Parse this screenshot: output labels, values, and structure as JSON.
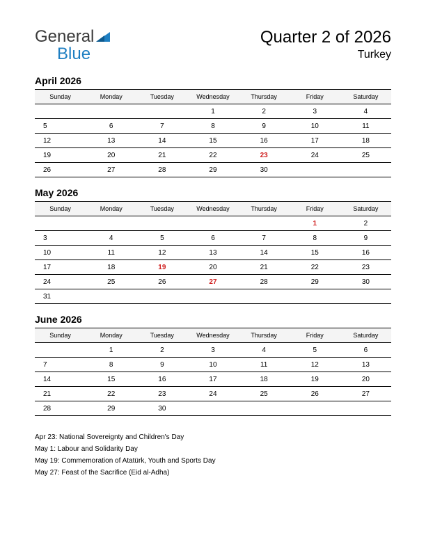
{
  "logo": {
    "general": "General",
    "blue": "Blue",
    "tri_color": "#1e7fc2"
  },
  "title": "Quarter 2 of 2026",
  "country": "Turkey",
  "weekdays": [
    "Sunday",
    "Monday",
    "Tuesday",
    "Wednesday",
    "Thursday",
    "Friday",
    "Saturday"
  ],
  "colors": {
    "holiday": "#d02020",
    "text": "#000000",
    "header_bg": "#f4f4f4",
    "border": "#000000",
    "background": "#ffffff"
  },
  "months": [
    {
      "name": "April 2026",
      "weeks": [
        [
          "",
          "",
          "",
          "1",
          "2",
          "3",
          "4"
        ],
        [
          "5",
          "6",
          "7",
          "8",
          "9",
          "10",
          "11"
        ],
        [
          "12",
          "13",
          "14",
          "15",
          "16",
          "17",
          "18"
        ],
        [
          "19",
          "20",
          "21",
          "22",
          "23",
          "24",
          "25"
        ],
        [
          "26",
          "27",
          "28",
          "29",
          "30",
          "",
          ""
        ]
      ],
      "holidays": [
        "23"
      ]
    },
    {
      "name": "May 2026",
      "weeks": [
        [
          "",
          "",
          "",
          "",
          "",
          "1",
          "2"
        ],
        [
          "3",
          "4",
          "5",
          "6",
          "7",
          "8",
          "9"
        ],
        [
          "10",
          "11",
          "12",
          "13",
          "14",
          "15",
          "16"
        ],
        [
          "17",
          "18",
          "19",
          "20",
          "21",
          "22",
          "23"
        ],
        [
          "24",
          "25",
          "26",
          "27",
          "28",
          "29",
          "30"
        ],
        [
          "31",
          "",
          "",
          "",
          "",
          "",
          ""
        ]
      ],
      "holidays": [
        "1",
        "19",
        "27"
      ]
    },
    {
      "name": "June 2026",
      "weeks": [
        [
          "",
          "1",
          "2",
          "3",
          "4",
          "5",
          "6"
        ],
        [
          "7",
          "8",
          "9",
          "10",
          "11",
          "12",
          "13"
        ],
        [
          "14",
          "15",
          "16",
          "17",
          "18",
          "19",
          "20"
        ],
        [
          "21",
          "22",
          "23",
          "24",
          "25",
          "26",
          "27"
        ],
        [
          "28",
          "29",
          "30",
          "",
          "",
          "",
          ""
        ]
      ],
      "holidays": []
    }
  ],
  "holiday_list": [
    "Apr 23: National Sovereignty and Children's Day",
    "May 1: Labour and Solidarity Day",
    "May 19: Commemoration of Atatürk, Youth and Sports Day",
    "May 27: Feast of the Sacrifice (Eid al-Adha)"
  ]
}
